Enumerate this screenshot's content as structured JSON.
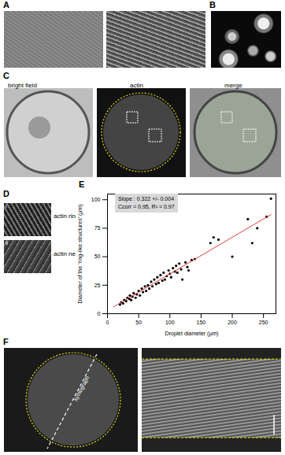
{
  "panel_labels": [
    "A",
    "B",
    "C",
    "D",
    "E",
    "F"
  ],
  "C": {
    "labels": [
      "bright field",
      "actin",
      "merge"
    ]
  },
  "D": {
    "insets": [
      "i",
      "ii"
    ],
    "labels": [
      "actin ring",
      "actin network"
    ]
  },
  "F": {
    "kymograph_label": "kymograph"
  },
  "chart_data": {
    "type": "scatter",
    "xlabel": "Droplet diameter (µm)",
    "ylabel": "Diameter of the 'ring-like structures' (µm)",
    "x": [
      20,
      22,
      25,
      27,
      30,
      32,
      35,
      36,
      38,
      40,
      42,
      45,
      47,
      50,
      52,
      55,
      57,
      60,
      62,
      65,
      67,
      70,
      72,
      75,
      78,
      80,
      82,
      85,
      88,
      90,
      92,
      95,
      98,
      100,
      102,
      105,
      108,
      110,
      112,
      115,
      118,
      120,
      125,
      128,
      130,
      135,
      140,
      165,
      170,
      178,
      200,
      225,
      232,
      240,
      255,
      262
    ],
    "values": [
      8,
      10,
      9,
      12,
      11,
      14,
      13,
      16,
      12,
      15,
      18,
      14,
      17,
      20,
      16,
      22,
      19,
      24,
      20,
      25,
      22,
      28,
      24,
      30,
      26,
      32,
      27,
      34,
      29,
      36,
      30,
      33,
      38,
      35,
      32,
      40,
      37,
      42,
      36,
      44,
      39,
      30,
      45,
      41,
      38,
      47,
      48,
      62,
      67,
      65,
      50,
      83,
      62,
      75,
      85,
      101
    ],
    "color": "#000000",
    "fit": {
      "x": [
        10,
        262
      ],
      "values": [
        6,
        87
      ],
      "color": "#e0403a"
    },
    "annotations": [
      "Slope : 0.322 +/- 0.004",
      "Ccorr = 0.95, R² = 0.97"
    ],
    "xlim": [
      0,
      270
    ],
    "ylim": [
      0,
      105
    ],
    "xticks": [
      0,
      50,
      100,
      150,
      200,
      250
    ],
    "yticks": [
      0,
      25,
      50,
      75,
      100
    ]
  }
}
